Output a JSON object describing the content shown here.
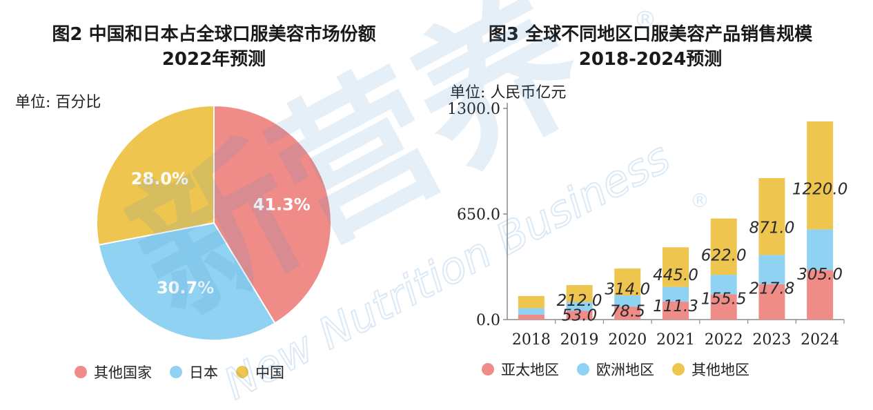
{
  "colors": {
    "other": "#F08C88",
    "japan": "#8FD2F2",
    "china": "#EEC54E",
    "axis": "#8a8a8a"
  },
  "left": {
    "title_line1": "图2 中国和日本占全球口服美容市场份额",
    "title_line2": "2022年预测",
    "unit": "单位: 百分比",
    "legend": [
      "其他国家",
      "日本",
      "中国"
    ]
  },
  "right": {
    "title_line1": "图3 全球不同地区口服美容产品销售规模",
    "title_line2": "2018-2024预测",
    "unit": "单位: 人民币亿元",
    "legend": [
      "亚太地区",
      "欧洲地区",
      "其他地区"
    ]
  },
  "watermark": {
    "text": "新营养",
    "sub": "New Nutrition Business"
  },
  "chart_data": [
    {
      "type": "pie",
      "title": "图2 中国和日本占全球口服美容市场份额 2022年预测",
      "unit": "百分比",
      "slices": [
        {
          "name": "其他国家",
          "value": 41.3,
          "label": "41.3%"
        },
        {
          "name": "日本",
          "value": 30.7,
          "label": "30.7%"
        },
        {
          "name": "中国",
          "value": 28.0,
          "label": "28.0%"
        }
      ]
    },
    {
      "type": "bar",
      "stacked": true,
      "title": "图3 全球不同地区口服美容产品销售规模 2018-2024预测",
      "ylabel": "人民币亿元",
      "categories": [
        "2018",
        "2019",
        "2020",
        "2021",
        "2022",
        "2023",
        "2024"
      ],
      "ylim": [
        0,
        1300
      ],
      "yticks": [
        "0.0",
        "650.0",
        "1300.0"
      ],
      "series": [
        {
          "name": "亚太地区",
          "values": [
            30,
            53.0,
            78.5,
            111.3,
            155.5,
            217.8,
            305.0
          ]
        },
        {
          "name": "欧洲地区",
          "values": [
            40,
            55,
            70,
            90,
            120,
            180,
            250
          ]
        },
        {
          "name": "其他地区",
          "values": [
            75,
            104,
            165.5,
            243.7,
            346.5,
            473.2,
            665.0
          ]
        }
      ],
      "data_labels": [
        {
          "category": "2019",
          "text": "212.0"
        },
        {
          "category": "2019",
          "text": "53.0"
        },
        {
          "category": "2020",
          "text": "314.0"
        },
        {
          "category": "2020",
          "text": "78.5"
        },
        {
          "category": "2021",
          "text": "445.0"
        },
        {
          "category": "2021",
          "text": "111.3"
        },
        {
          "category": "2022",
          "text": "622.0"
        },
        {
          "category": "2022",
          "text": "155.5"
        },
        {
          "category": "2023",
          "text": "871.0"
        },
        {
          "category": "2023",
          "text": "217.8"
        },
        {
          "category": "2024",
          "text": "1220.0"
        },
        {
          "category": "2024",
          "text": "305.0"
        }
      ]
    }
  ]
}
